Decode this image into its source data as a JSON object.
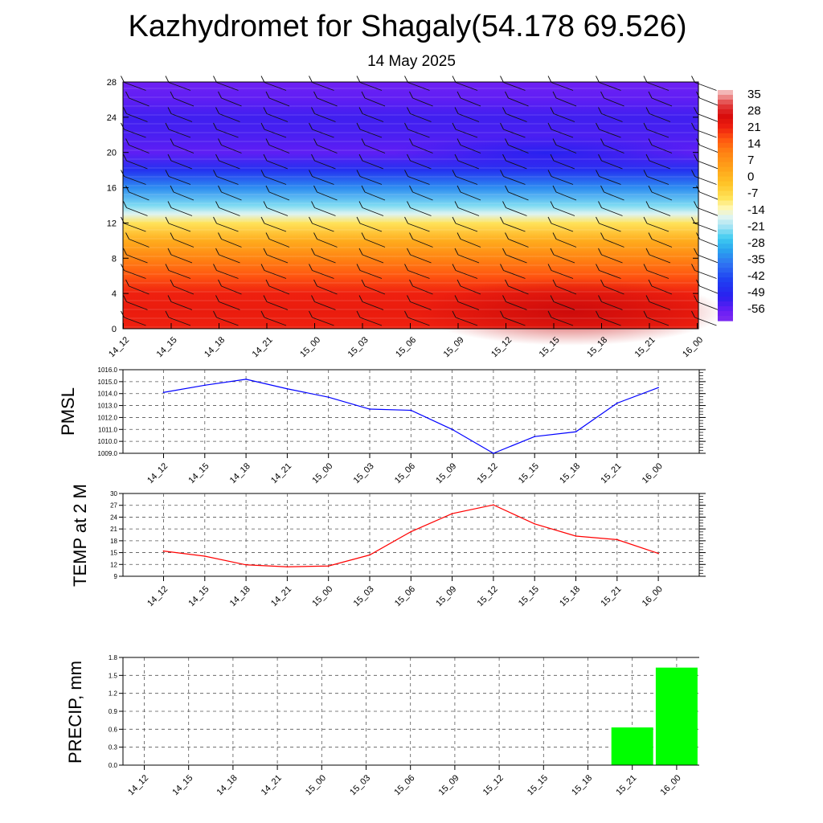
{
  "header": {
    "title": "Kazhydromet for Shagaly(54.178 69.526)",
    "date": "14 May 2025"
  },
  "colors": {
    "pmsl_line": "#0000ff",
    "temp_line": "#ff0000",
    "precip_bar": "#00ff00",
    "grid": "#555555"
  },
  "chart_data": [
    {
      "type": "heatmap",
      "name": "upper-air-temperature-wind",
      "categories": [
        "14_12",
        "14_15",
        "14_18",
        "14_21",
        "15_00",
        "15_03",
        "15_06",
        "15_09",
        "15_12",
        "15_15",
        "15_18",
        "15_21",
        "16_00"
      ],
      "y_ticks": [
        "0",
        "4",
        "8",
        "12",
        "16",
        "20",
        "24",
        "28"
      ],
      "ylim": [
        0,
        28
      ],
      "colorbar": {
        "labels": [
          "35",
          "28",
          "21",
          "14",
          "7",
          "0",
          "-7",
          "-14",
          "-21",
          "-28",
          "-35",
          "-42",
          "-49",
          "-56"
        ],
        "range": [
          -60,
          38
        ]
      },
      "value_bands": [
        {
          "y": 0,
          "value": 22
        },
        {
          "y": 2,
          "value": 23
        },
        {
          "y": 4,
          "value": 22
        },
        {
          "y": 6,
          "value": 17
        },
        {
          "y": 8,
          "value": 11
        },
        {
          "y": 10,
          "value": 3
        },
        {
          "y": 12,
          "value": -8
        },
        {
          "y": 13,
          "value": -16
        },
        {
          "y": 14,
          "value": -22
        },
        {
          "y": 16,
          "value": -33
        },
        {
          "y": 18,
          "value": -46
        },
        {
          "y": 20,
          "value": -55
        },
        {
          "y": 22,
          "value": -53
        },
        {
          "y": 24,
          "value": -52
        },
        {
          "y": 26,
          "value": -55
        },
        {
          "y": 28,
          "value": -57
        }
      ]
    },
    {
      "type": "line",
      "name": "pmsl",
      "ylabel": "PMSL",
      "categories": [
        "14_12",
        "14_15",
        "14_18",
        "14_21",
        "15_00",
        "15_03",
        "15_06",
        "15_09",
        "15_12",
        "15_15",
        "15_18",
        "15_21",
        "16_00"
      ],
      "values": [
        1014.1,
        1014.7,
        1015.2,
        1014.4,
        1013.7,
        1012.7,
        1012.6,
        1011.0,
        1009.0,
        1010.4,
        1010.8,
        1013.2,
        1014.5
      ],
      "ylim": [
        1009,
        1016
      ],
      "y_ticks": [
        "1009.0",
        "1010.0",
        "1011.0",
        "1012.0",
        "1013.0",
        "1014.0",
        "1015.0",
        "1016.0"
      ]
    },
    {
      "type": "line",
      "name": "temperature-2m",
      "ylabel": "TEMP at 2 M",
      "categories": [
        "14_12",
        "14_15",
        "14_18",
        "14_21",
        "15_00",
        "15_03",
        "15_06",
        "15_09",
        "15_12",
        "15_15",
        "15_18",
        "15_21",
        "16_00"
      ],
      "values": [
        15.4,
        14.1,
        11.9,
        11.4,
        11.6,
        14.4,
        20.3,
        24.9,
        27.1,
        22.3,
        19.2,
        18.3,
        14.8
      ],
      "ylim": [
        9,
        30
      ],
      "y_ticks": [
        "9",
        "12",
        "15",
        "18",
        "21",
        "24",
        "27",
        "30"
      ]
    },
    {
      "type": "bar",
      "name": "precipitation",
      "ylabel": "PRECIP, mm",
      "categories": [
        "14_12",
        "14_15",
        "14_18",
        "14_21",
        "15_00",
        "15_03",
        "15_06",
        "15_09",
        "15_12",
        "15_15",
        "15_18",
        "15_21",
        "16_00"
      ],
      "values": [
        0,
        0,
        0,
        0,
        0,
        0,
        0,
        0,
        0,
        0,
        0,
        0.63,
        1.63
      ],
      "ylim": [
        0,
        1.8
      ],
      "y_ticks": [
        "0.0",
        "0.3",
        "0.6",
        "0.9",
        "1.2",
        "1.5",
        "1.8"
      ]
    }
  ]
}
